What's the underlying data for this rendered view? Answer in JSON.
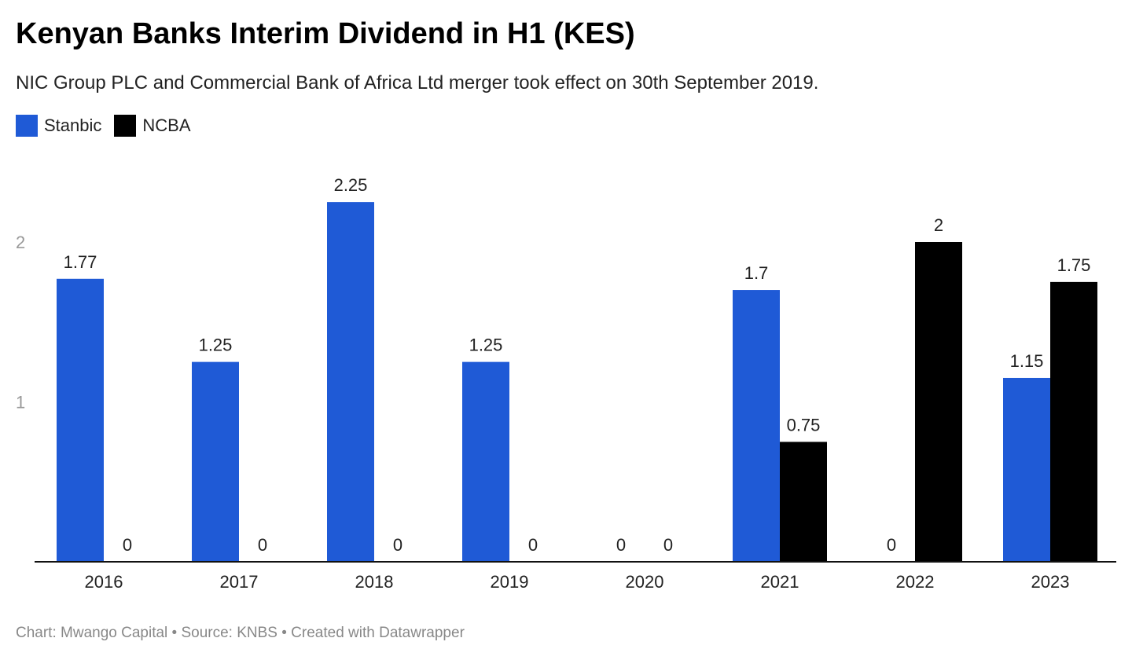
{
  "header": {
    "title": "Kenyan Banks Interim Dividend in H1 (KES)",
    "subtitle": "NIC Group PLC and Commercial Bank of Africa Ltd merger took effect on 30th September 2019."
  },
  "footer": {
    "credit": "Chart: Mwango Capital • Source: KNBS • Created with Datawrapper"
  },
  "chart_data": {
    "type": "bar",
    "title": "Kenyan Banks Interim Dividend in H1 (KES)",
    "subtitle": "NIC Group PLC and Commercial Bank of Africa Ltd merger took effect on 30th September 2019.",
    "xlabel": "",
    "ylabel": "",
    "categories": [
      "2016",
      "2017",
      "2018",
      "2019",
      "2020",
      "2021",
      "2022",
      "2023"
    ],
    "series": [
      {
        "name": "Stanbic",
        "color": "#1f5ad6",
        "values": [
          1.77,
          1.25,
          2.25,
          1.25,
          0,
          1.7,
          0,
          1.15
        ],
        "labels": [
          "1.77",
          "1.25",
          "2.25",
          "1.25",
          "0",
          "1.7",
          "0",
          "1.15"
        ]
      },
      {
        "name": "NCBA",
        "color": "#000000",
        "values": [
          0,
          0,
          0,
          0,
          0,
          0.75,
          2,
          1.75
        ],
        "labels": [
          "0",
          "0",
          "0",
          "0",
          "0",
          "0.75",
          "2",
          "1.75"
        ]
      }
    ],
    "yticks": [
      {
        "value": 1,
        "label": "1"
      },
      {
        "value": 2,
        "label": "2"
      }
    ],
    "ylim": [
      0,
      2.25
    ],
    "grid": false,
    "legend_position": "top-left"
  }
}
